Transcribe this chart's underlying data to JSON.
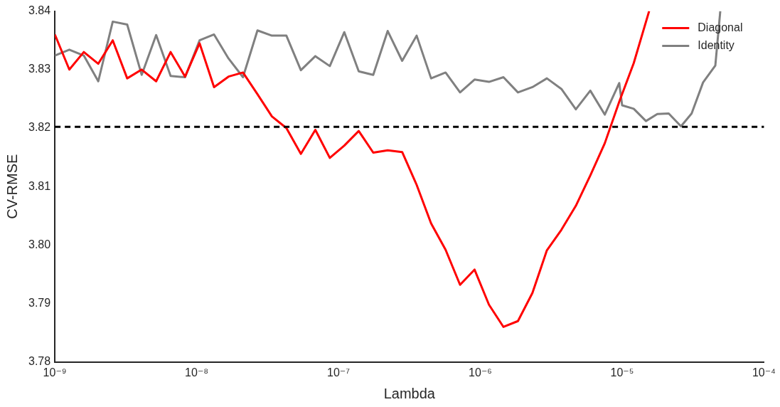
{
  "chart_data": {
    "type": "line",
    "xlabel": "Lambda",
    "ylabel": "CV-RMSE",
    "log": "x",
    "grid": false,
    "legend": "top right",
    "marker": "none",
    "line_style": "solid",
    "xlim": [
      1e-09,
      0.0001
    ],
    "xticks": [
      {
        "value": 1e-09,
        "label": "10⁻⁹"
      },
      {
        "value": 1e-08,
        "label": "10⁻⁸"
      },
      {
        "value": 1e-07,
        "label": "10⁻⁷"
      },
      {
        "value": 1e-06,
        "label": "10⁻⁶"
      },
      {
        "value": 1e-05,
        "label": "10⁻⁵"
      },
      {
        "value": 0.0001,
        "label": "10⁻⁴"
      }
    ],
    "ylim": [
      3.78,
      3.84
    ],
    "yticks": [
      3.78,
      3.79,
      {
        "value": 3.8,
        "label": "3.80"
      },
      3.81,
      3.82,
      3.83,
      3.84
    ],
    "ref_lines": [
      {
        "axis": "y",
        "value": 3.8202,
        "color": "#000000",
        "line_style": "dashed"
      }
    ],
    "series": [
      {
        "name": "Diagonal",
        "color": "#ff0000",
        "x": [
          1e-09,
          1.265e-09,
          1.6e-09,
          2.024e-09,
          2.56e-09,
          3.237e-09,
          4.095e-09,
          5.179e-09,
          6.551e-09,
          8.286e-09,
          1.048e-08,
          1.326e-08,
          1.677e-08,
          2.121e-08,
          2.683e-08,
          3.393e-08,
          4.292e-08,
          5.429e-08,
          6.866e-08,
          8.685e-08,
          1.099e-07,
          1.389e-07,
          1.758e-07,
          2.223e-07,
          2.812e-07,
          3.556e-07,
          4.498e-07,
          5.69e-07,
          7.197e-07,
          9.103e-07,
          1.151e-06,
          1.456e-06,
          1.842e-06,
          2.33e-06,
          2.947e-06,
          3.728e-06,
          4.715e-06,
          5.964e-06,
          7.543e-06,
          9.541e-06,
          1.207e-05,
          1.55e-05
        ],
        "values": [
          3.836,
          3.83,
          3.833,
          3.831,
          3.835,
          3.8285,
          3.83,
          3.828,
          3.833,
          3.8288,
          3.8345,
          3.827,
          3.8288,
          3.8295,
          3.8258,
          3.822,
          3.82,
          3.8156,
          3.8197,
          3.8149,
          3.817,
          3.8195,
          3.8158,
          3.8162,
          3.8159,
          3.8103,
          3.8037,
          3.7992,
          3.7932,
          3.7958,
          3.7898,
          3.786,
          3.787,
          3.7918,
          3.7991,
          3.8026,
          3.8067,
          3.8119,
          3.8174,
          3.8245,
          3.8311,
          3.84
        ]
      },
      {
        "name": "Identity",
        "color": "#808080",
        "x": [
          1e-09,
          1.265e-09,
          1.6e-09,
          2.024e-09,
          2.56e-09,
          3.237e-09,
          4.095e-09,
          5.179e-09,
          6.551e-09,
          8.286e-09,
          1.048e-08,
          1.326e-08,
          1.677e-08,
          2.121e-08,
          2.683e-08,
          3.393e-08,
          4.292e-08,
          5.429e-08,
          6.866e-08,
          8.685e-08,
          1.099e-07,
          1.389e-07,
          1.758e-07,
          2.223e-07,
          2.812e-07,
          3.556e-07,
          4.498e-07,
          5.69e-07,
          7.197e-07,
          9.103e-07,
          1.151e-06,
          1.456e-06,
          1.842e-06,
          2.33e-06,
          2.947e-06,
          3.728e-06,
          4.715e-06,
          5.964e-06,
          7.543e-06,
          9.541e-06,
          1e-05,
          1.207e-05,
          1.472e-05,
          1.77e-05,
          2.13e-05,
          2.6e-05,
          3.09e-05,
          3.72e-05,
          4.54e-05,
          4.92e-05
        ],
        "values": [
          3.8324,
          3.8334,
          3.8324,
          3.828,
          3.8382,
          3.8377,
          3.8291,
          3.8359,
          3.8289,
          3.8287,
          3.835,
          3.836,
          3.8319,
          3.8287,
          3.8367,
          3.8358,
          3.8358,
          3.8299,
          3.8323,
          3.8306,
          3.8364,
          3.8297,
          3.8291,
          3.8366,
          3.8315,
          3.8358,
          3.8285,
          3.8295,
          3.8261,
          3.8283,
          3.8279,
          3.8287,
          3.8261,
          3.827,
          3.8285,
          3.8267,
          3.8232,
          3.8264,
          3.8223,
          3.8277,
          3.8239,
          3.8233,
          3.8212,
          3.8224,
          3.8225,
          3.8203,
          3.8225,
          3.8278,
          3.8307,
          3.84
        ]
      }
    ]
  }
}
